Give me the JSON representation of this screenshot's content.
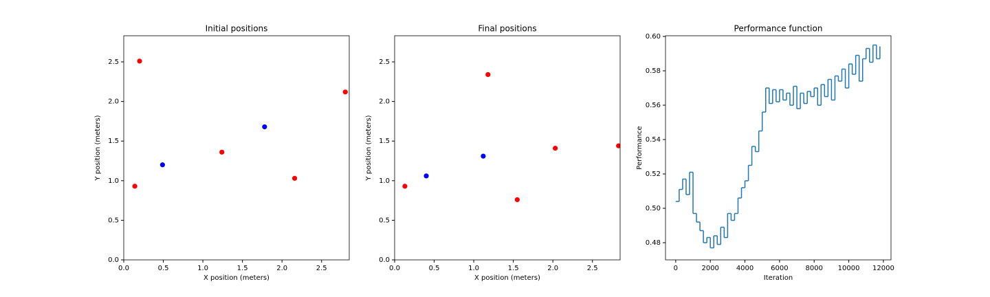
{
  "chart_data": [
    {
      "type": "scatter",
      "title": "Initial positions",
      "x_label": "X position (meters)",
      "y_label": "Y position (meters)",
      "series": [
        {
          "color": "#ff0000",
          "x": [
            0.2,
            0.14,
            1.24,
            2.16,
            2.8
          ],
          "y": [
            2.51,
            0.93,
            1.36,
            1.03,
            2.12
          ]
        },
        {
          "color": "#0000ff",
          "x": [
            0.49,
            1.78
          ],
          "y": [
            1.2,
            1.68
          ]
        }
      ],
      "xlim": [
        0,
        2.85
      ],
      "ylim": [
        0,
        2.83
      ],
      "xticks": [
        {
          "value": 0,
          "label": "0.0"
        },
        0.5,
        {
          "value": 1,
          "label": "1.0"
        },
        1.5,
        {
          "value": 2,
          "label": "2.0"
        },
        2.5
      ],
      "yticks": [
        {
          "value": 0,
          "label": "0.0"
        },
        0.5,
        {
          "value": 1,
          "label": "1.0"
        },
        1.5,
        {
          "value": 2,
          "label": "2.0"
        },
        2.5
      ]
    },
    {
      "type": "scatter",
      "title": "Final positions",
      "x_label": "X position (meters)",
      "y_label": "Y position (meters)",
      "series": [
        {
          "color": "#ff0000",
          "x": [
            0.13,
            1.18,
            1.55,
            2.03,
            2.83
          ],
          "y": [
            0.93,
            2.34,
            0.76,
            1.41,
            1.44
          ]
        },
        {
          "color": "#0000ff",
          "x": [
            0.4,
            1.12
          ],
          "y": [
            1.06,
            1.31
          ]
        }
      ],
      "xlim": [
        0,
        2.85
      ],
      "ylim": [
        0,
        2.83
      ],
      "xticks": [
        {
          "value": 0,
          "label": "0.0"
        },
        0.5,
        {
          "value": 1,
          "label": "1.0"
        },
        1.5,
        {
          "value": 2,
          "label": "2.0"
        },
        2.5
      ],
      "yticks": [
        {
          "value": 0,
          "label": "0.0"
        },
        0.5,
        {
          "value": 1,
          "label": "1.0"
        },
        1.5,
        {
          "value": 2,
          "label": "2.0"
        },
        2.5
      ]
    },
    {
      "type": "line",
      "drawstyle": "steps-post",
      "title": "Performance function",
      "x_label": "Iteration",
      "y_label": "Performance",
      "series": [
        {
          "color": "#1f77b4",
          "x": [
            0,
            200,
            400,
            600,
            800,
            1000,
            1200,
            1400,
            1600,
            1800,
            2000,
            2200,
            2400,
            2600,
            2800,
            3000,
            3200,
            3400,
            3600,
            3800,
            4000,
            4200,
            4400,
            4600,
            4800,
            5000,
            5200,
            5400,
            5600,
            5800,
            6000,
            6200,
            6400,
            6600,
            6800,
            7000,
            7200,
            7400,
            7600,
            7800,
            8000,
            8200,
            8400,
            8600,
            8800,
            9000,
            9200,
            9400,
            9600,
            9800,
            10000,
            10200,
            10400,
            10600,
            10800,
            11000,
            11200,
            11400,
            11600,
            11800
          ],
          "values": [
            0.504,
            0.511,
            0.517,
            0.508,
            0.521,
            0.497,
            0.492,
            0.487,
            0.48,
            0.483,
            0.477,
            0.484,
            0.479,
            0.489,
            0.483,
            0.497,
            0.493,
            0.497,
            0.506,
            0.512,
            0.516,
            0.525,
            0.536,
            0.533,
            0.545,
            0.556,
            0.57,
            0.561,
            0.569,
            0.562,
            0.569,
            0.563,
            0.567,
            0.56,
            0.571,
            0.558,
            0.567,
            0.561,
            0.568,
            0.565,
            0.57,
            0.56,
            0.572,
            0.565,
            0.575,
            0.563,
            0.577,
            0.574,
            0.581,
            0.57,
            0.584,
            0.578,
            0.589,
            0.574,
            0.587,
            0.593,
            0.585,
            0.595,
            0.587,
            0.594
          ]
        }
      ],
      "xlim": [
        -590,
        12440
      ],
      "ylim": [
        0.47,
        0.6004
      ],
      "xticks": [
        0,
        2000,
        4000,
        6000,
        8000,
        10000,
        12000
      ],
      "yticks": [
        0.48,
        {
          "value": 0.5,
          "label": "0.50"
        },
        0.52,
        0.54,
        0.56,
        0.58,
        {
          "value": 0.6,
          "label": "0.60"
        }
      ]
    }
  ]
}
